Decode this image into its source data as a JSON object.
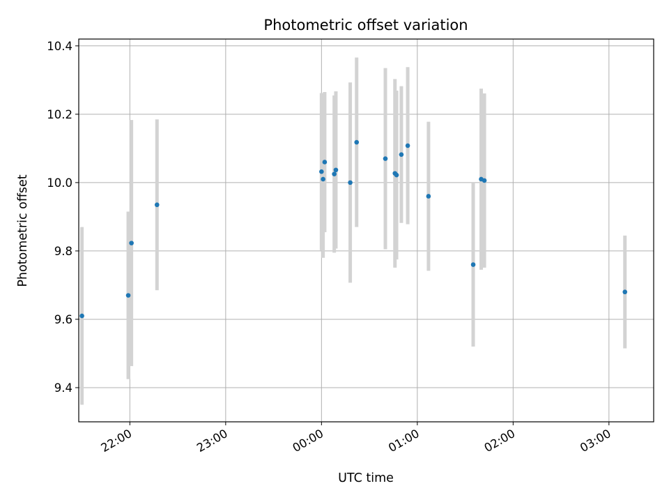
{
  "chart_data": {
    "type": "scatter",
    "title": "Photometric offset variation",
    "xlabel": "UTC time",
    "ylabel": "Photometric offset",
    "x_axis_type": "time-of-night",
    "xlim": [
      "21:28",
      "03:28"
    ],
    "ylim": [
      9.3,
      10.42
    ],
    "x_ticks": [
      "22:00",
      "23:00",
      "00:00",
      "01:00",
      "02:00",
      "03:00"
    ],
    "y_ticks": [
      9.4,
      9.6,
      9.8,
      10.0,
      10.2,
      10.4
    ],
    "grid": true,
    "colors": {
      "points": "#1f77b4",
      "errorbars": "#d3d3d3",
      "grid": "#b0b0b0"
    },
    "points": [
      {
        "time": "21:30",
        "y": 9.61,
        "err": 0.26
      },
      {
        "time": "21:59",
        "y": 9.67,
        "err": 0.245
      },
      {
        "time": "22:01",
        "y": 9.823,
        "err": 0.36
      },
      {
        "time": "22:17",
        "y": 9.935,
        "err": 0.25
      },
      {
        "time": "00:00",
        "y": 10.032,
        "err": 0.23
      },
      {
        "time": "00:01",
        "y": 10.01,
        "err": 0.23
      },
      {
        "time": "00:02",
        "y": 10.06,
        "err": 0.205
      },
      {
        "time": "00:08",
        "y": 10.025,
        "err": 0.23
      },
      {
        "time": "00:09",
        "y": 10.037,
        "err": 0.23
      },
      {
        "time": "00:18",
        "y": 10.0,
        "err": 0.293
      },
      {
        "time": "00:22",
        "y": 10.118,
        "err": 0.248
      },
      {
        "time": "00:40",
        "y": 10.07,
        "err": 0.265
      },
      {
        "time": "00:46",
        "y": 10.027,
        "err": 0.276
      },
      {
        "time": "00:47",
        "y": 10.022,
        "err": 0.247
      },
      {
        "time": "00:50",
        "y": 10.082,
        "err": 0.2
      },
      {
        "time": "00:54",
        "y": 10.108,
        "err": 0.23
      },
      {
        "time": "01:07",
        "y": 9.96,
        "err": 0.218
      },
      {
        "time": "01:35",
        "y": 9.76,
        "err": 0.24
      },
      {
        "time": "01:40",
        "y": 10.01,
        "err": 0.265
      },
      {
        "time": "01:42",
        "y": 10.006,
        "err": 0.255
      },
      {
        "time": "03:10",
        "y": 9.68,
        "err": 0.165
      }
    ]
  }
}
